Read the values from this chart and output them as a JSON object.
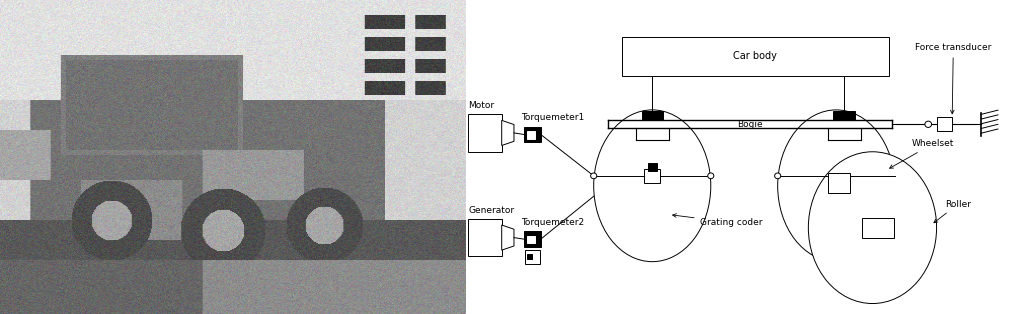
{
  "labels": {
    "car_body": "Car body",
    "bogie": "Bogie",
    "motor": "Motor",
    "generator": "Generator",
    "torquemeter1": "Torquemeter1",
    "torquemeter2": "Torquemeter2",
    "grating_coder": "Grating coder",
    "wheelset": "Wheelset",
    "roller": "Roller",
    "force_transducer": "Force transducer"
  },
  "font_size": 6.5
}
